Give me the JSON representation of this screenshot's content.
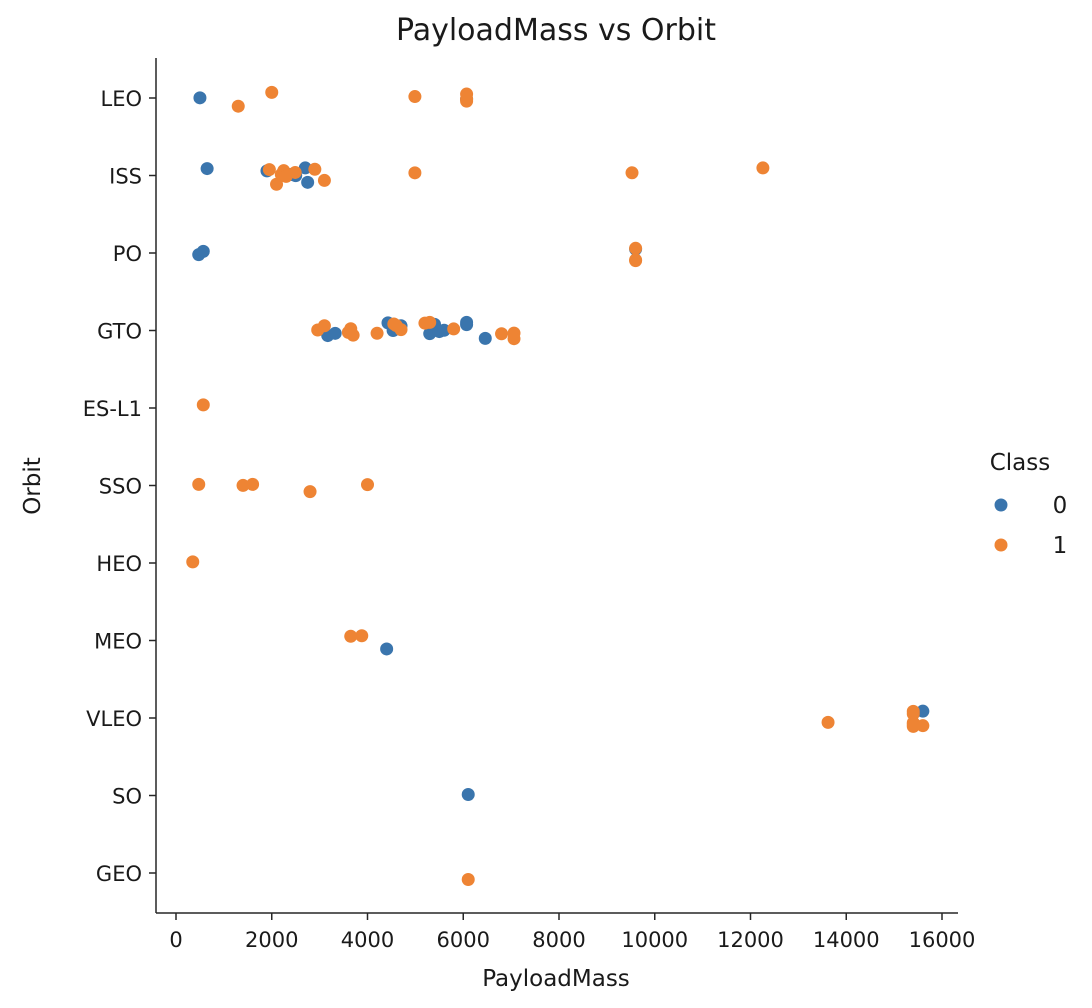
{
  "chart_data": {
    "type": "scatter",
    "title": "PayloadMass vs Orbit",
    "xlabel": "PayloadMass",
    "ylabel": "Orbit",
    "xlim": [
      -500,
      16400
    ],
    "xticks": [
      0,
      2000,
      4000,
      6000,
      8000,
      10000,
      12000,
      14000,
      16000
    ],
    "categories": [
      "LEO",
      "ISS",
      "PO",
      "GTO",
      "ES-L1",
      "SSO",
      "HEO",
      "MEO",
      "VLEO",
      "SO",
      "GEO"
    ],
    "grid": false,
    "legend": {
      "title": "Class",
      "placement": "right",
      "entries": [
        {
          "name": "0",
          "color": "#3a75ad"
        },
        {
          "name": "1",
          "color": "#ee8434"
        }
      ]
    },
    "series": [
      {
        "name": "0",
        "color": "#3a75ad",
        "points": [
          {
            "x": 500,
            "y": "LEO"
          },
          {
            "x": 6070,
            "y": "LEO"
          },
          {
            "x": 650,
            "y": "ISS"
          },
          {
            "x": 1900,
            "y": "ISS"
          },
          {
            "x": 2400,
            "y": "ISS"
          },
          {
            "x": 2500,
            "y": "ISS"
          },
          {
            "x": 2700,
            "y": "ISS"
          },
          {
            "x": 2750,
            "y": "ISS"
          },
          {
            "x": 475,
            "y": "PO"
          },
          {
            "x": 570,
            "y": "PO"
          },
          {
            "x": 9600,
            "y": "PO"
          },
          {
            "x": 3170,
            "y": "GTO"
          },
          {
            "x": 3325,
            "y": "GTO"
          },
          {
            "x": 4428,
            "y": "GTO"
          },
          {
            "x": 4535,
            "y": "GTO"
          },
          {
            "x": 4700,
            "y": "GTO"
          },
          {
            "x": 5300,
            "y": "GTO"
          },
          {
            "x": 5400,
            "y": "GTO"
          },
          {
            "x": 5500,
            "y": "GTO"
          },
          {
            "x": 5600,
            "y": "GTO"
          },
          {
            "x": 6070,
            "y": "GTO"
          },
          {
            "x": 6070,
            "y": "GTO"
          },
          {
            "x": 6460,
            "y": "GTO"
          },
          {
            "x": 4400,
            "y": "MEO"
          },
          {
            "x": 15600,
            "y": "VLEO"
          },
          {
            "x": 6104,
            "y": "SO"
          }
        ]
      },
      {
        "name": "1",
        "color": "#ee8434",
        "points": [
          {
            "x": 1300,
            "y": "LEO"
          },
          {
            "x": 2000,
            "y": "LEO"
          },
          {
            "x": 4990,
            "y": "LEO"
          },
          {
            "x": 6070,
            "y": "LEO"
          },
          {
            "x": 6070,
            "y": "LEO"
          },
          {
            "x": 6070,
            "y": "LEO"
          },
          {
            "x": 1950,
            "y": "ISS"
          },
          {
            "x": 2100,
            "y": "ISS"
          },
          {
            "x": 2200,
            "y": "ISS"
          },
          {
            "x": 2250,
            "y": "ISS"
          },
          {
            "x": 2300,
            "y": "ISS"
          },
          {
            "x": 2490,
            "y": "ISS"
          },
          {
            "x": 2900,
            "y": "ISS"
          },
          {
            "x": 3100,
            "y": "ISS"
          },
          {
            "x": 4990,
            "y": "ISS"
          },
          {
            "x": 9525,
            "y": "ISS"
          },
          {
            "x": 12259,
            "y": "ISS"
          },
          {
            "x": 9600,
            "y": "PO"
          },
          {
            "x": 9600,
            "y": "PO"
          },
          {
            "x": 9600,
            "y": "PO"
          },
          {
            "x": 2960,
            "y": "GTO"
          },
          {
            "x": 3100,
            "y": "GTO"
          },
          {
            "x": 3600,
            "y": "GTO"
          },
          {
            "x": 3650,
            "y": "GTO"
          },
          {
            "x": 3700,
            "y": "GTO"
          },
          {
            "x": 4200,
            "y": "GTO"
          },
          {
            "x": 4550,
            "y": "GTO"
          },
          {
            "x": 4600,
            "y": "GTO"
          },
          {
            "x": 4700,
            "y": "GTO"
          },
          {
            "x": 5200,
            "y": "GTO"
          },
          {
            "x": 5300,
            "y": "GTO"
          },
          {
            "x": 5800,
            "y": "GTO"
          },
          {
            "x": 6800,
            "y": "GTO"
          },
          {
            "x": 7060,
            "y": "GTO"
          },
          {
            "x": 7060,
            "y": "GTO"
          },
          {
            "x": 570,
            "y": "ES-L1"
          },
          {
            "x": 475,
            "y": "SSO"
          },
          {
            "x": 1400,
            "y": "SSO"
          },
          {
            "x": 1600,
            "y": "SSO"
          },
          {
            "x": 2800,
            "y": "SSO"
          },
          {
            "x": 4000,
            "y": "SSO"
          },
          {
            "x": 350,
            "y": "HEO"
          },
          {
            "x": 3650,
            "y": "MEO"
          },
          {
            "x": 3880,
            "y": "MEO"
          },
          {
            "x": 13620,
            "y": "VLEO"
          },
          {
            "x": 15400,
            "y": "VLEO"
          },
          {
            "x": 15400,
            "y": "VLEO"
          },
          {
            "x": 15400,
            "y": "VLEO"
          },
          {
            "x": 15400,
            "y": "VLEO"
          },
          {
            "x": 15400,
            "y": "VLEO"
          },
          {
            "x": 15600,
            "y": "VLEO"
          },
          {
            "x": 6104,
            "y": "GEO"
          }
        ]
      }
    ]
  }
}
